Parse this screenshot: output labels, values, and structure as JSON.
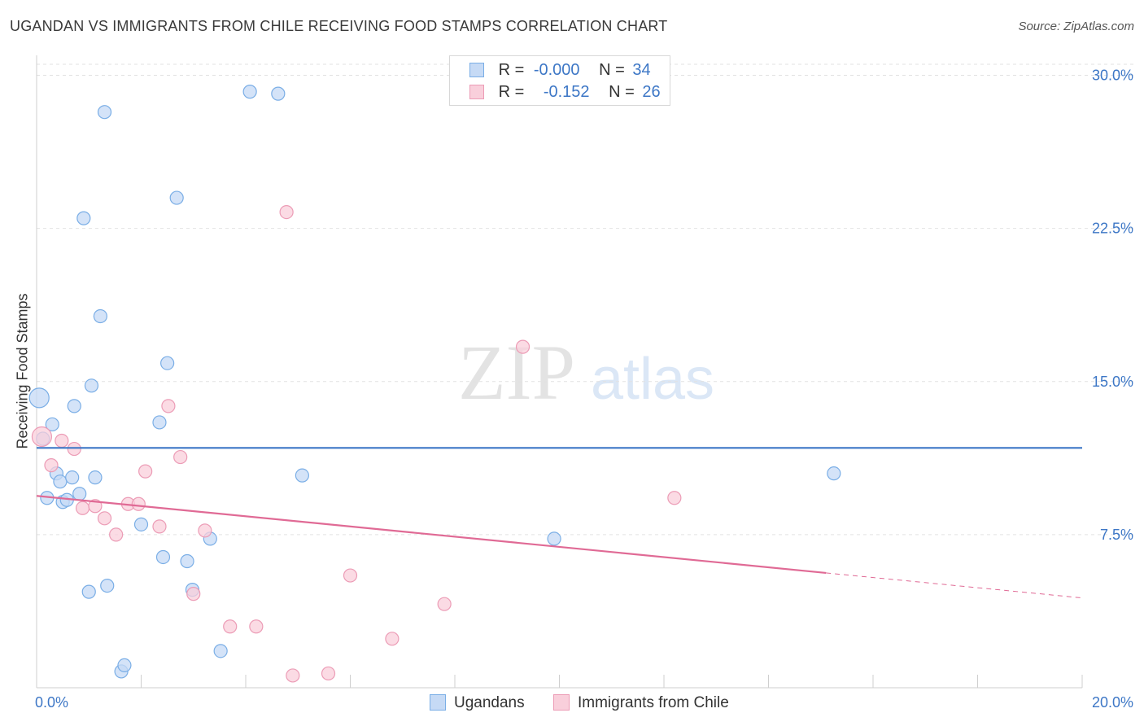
{
  "title": "UGANDAN VS IMMIGRANTS FROM CHILE RECEIVING FOOD STAMPS CORRELATION CHART",
  "source": "Source: ZipAtlas.com",
  "watermark": {
    "zip": "ZIP",
    "atlas": "atlas"
  },
  "legend": {
    "row1": {
      "r_label": "R =",
      "r_value": "-0.000",
      "n_label": "N =",
      "n_value": "34"
    },
    "row2": {
      "r_label": "R =",
      "r_value": "-0.152",
      "n_label": "N =",
      "n_value": "26"
    }
  },
  "chart_data": {
    "type": "scatter",
    "title": "UGANDAN VS IMMIGRANTS FROM CHILE RECEIVING FOOD STAMPS CORRELATION CHART",
    "xlabel": "",
    "ylabel": "Receiving Food Stamps",
    "xlim": [
      0,
      20
    ],
    "ylim": [
      0,
      30.7
    ],
    "x_tick_labels": [
      "0.0%",
      "20.0%"
    ],
    "y_ticks": [
      7.5,
      15.0,
      22.5,
      30.0
    ],
    "y_tick_labels": [
      "7.5%",
      "15.0%",
      "22.5%",
      "30.0%"
    ],
    "grid": true,
    "legend_placement": "top-center",
    "series": [
      {
        "name": "Ugandans",
        "color": "#7aaee6",
        "fill": "#c6daf5",
        "trend": {
          "x": [
            0,
            20
          ],
          "y": [
            11.75,
            11.75
          ],
          "dashed_from": null
        },
        "points": [
          {
            "x": 0.05,
            "y": 14.2,
            "big": true
          },
          {
            "x": 0.12,
            "y": 12.2
          },
          {
            "x": 0.3,
            "y": 12.9
          },
          {
            "x": 0.2,
            "y": 9.3
          },
          {
            "x": 0.38,
            "y": 10.5
          },
          {
            "x": 0.45,
            "y": 10.1
          },
          {
            "x": 0.5,
            "y": 9.1
          },
          {
            "x": 0.58,
            "y": 9.2
          },
          {
            "x": 0.68,
            "y": 10.3
          },
          {
            "x": 0.82,
            "y": 9.5
          },
          {
            "x": 0.72,
            "y": 13.8
          },
          {
            "x": 0.9,
            "y": 23.0
          },
          {
            "x": 1.05,
            "y": 14.8
          },
          {
            "x": 1.12,
            "y": 10.3
          },
          {
            "x": 1.0,
            "y": 4.7
          },
          {
            "x": 1.35,
            "y": 5.0
          },
          {
            "x": 1.22,
            "y": 18.2
          },
          {
            "x": 1.3,
            "y": 28.2
          },
          {
            "x": 1.62,
            "y": 0.8
          },
          {
            "x": 1.68,
            "y": 1.1
          },
          {
            "x": 2.0,
            "y": 8.0
          },
          {
            "x": 2.35,
            "y": 13.0
          },
          {
            "x": 2.42,
            "y": 6.4
          },
          {
            "x": 2.5,
            "y": 15.9
          },
          {
            "x": 2.68,
            "y": 24.0
          },
          {
            "x": 2.88,
            "y": 6.2
          },
          {
            "x": 2.98,
            "y": 4.8
          },
          {
            "x": 3.32,
            "y": 7.3
          },
          {
            "x": 3.52,
            "y": 1.8
          },
          {
            "x": 4.08,
            "y": 29.2
          },
          {
            "x": 4.62,
            "y": 29.1
          },
          {
            "x": 5.08,
            "y": 10.4
          },
          {
            "x": 9.9,
            "y": 7.3
          },
          {
            "x": 15.25,
            "y": 10.5
          }
        ]
      },
      {
        "name": "Immigrants from Chile",
        "color": "#ec9cb6",
        "fill": "#f9cfdb",
        "trend": {
          "x": [
            0,
            20
          ],
          "y": [
            9.4,
            4.4
          ],
          "dashed_from": 15.1
        },
        "points": [
          {
            "x": 0.1,
            "y": 12.3,
            "big": true
          },
          {
            "x": 0.28,
            "y": 10.9
          },
          {
            "x": 0.48,
            "y": 12.1
          },
          {
            "x": 0.72,
            "y": 11.7
          },
          {
            "x": 0.88,
            "y": 8.8
          },
          {
            "x": 1.12,
            "y": 8.9
          },
          {
            "x": 1.3,
            "y": 8.3
          },
          {
            "x": 1.52,
            "y": 7.5
          },
          {
            "x": 1.75,
            "y": 9.0
          },
          {
            "x": 1.95,
            "y": 9.0
          },
          {
            "x": 2.08,
            "y": 10.6
          },
          {
            "x": 2.35,
            "y": 7.9
          },
          {
            "x": 2.52,
            "y": 13.8
          },
          {
            "x": 2.75,
            "y": 11.3
          },
          {
            "x": 3.0,
            "y": 4.6
          },
          {
            "x": 3.22,
            "y": 7.7
          },
          {
            "x": 3.7,
            "y": 3.0
          },
          {
            "x": 4.2,
            "y": 3.0
          },
          {
            "x": 4.9,
            "y": 0.6
          },
          {
            "x": 4.78,
            "y": 23.3
          },
          {
            "x": 5.58,
            "y": 0.7
          },
          {
            "x": 6.0,
            "y": 5.5
          },
          {
            "x": 6.8,
            "y": 2.4
          },
          {
            "x": 7.8,
            "y": 4.1
          },
          {
            "x": 9.3,
            "y": 16.7
          },
          {
            "x": 12.2,
            "y": 9.3
          }
        ]
      }
    ]
  }
}
